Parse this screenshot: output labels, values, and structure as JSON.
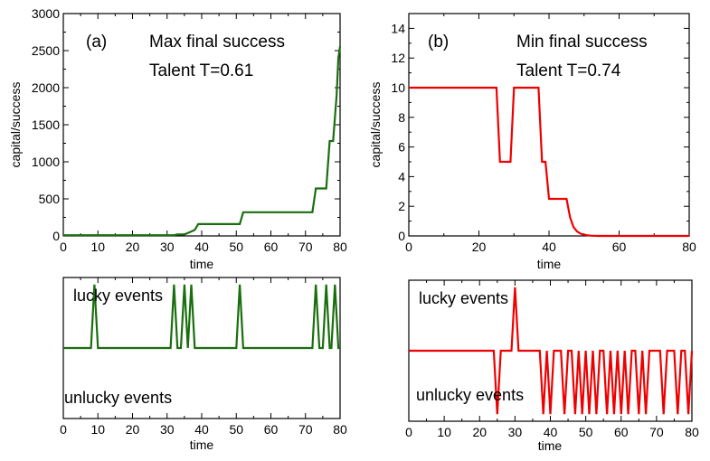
{
  "chart_data": [
    {
      "id": "a-capital",
      "type": "line",
      "panel_label": "(a)",
      "title": "Max final success",
      "subtitle": "Talent T=0.61",
      "xlabel": "time",
      "ylabel": "capital/success",
      "xlim": [
        0,
        80
      ],
      "ylim": [
        0,
        3000
      ],
      "xticks": [
        0,
        10,
        20,
        30,
        40,
        50,
        60,
        70,
        80
      ],
      "yticks": [
        0,
        500,
        1000,
        1500,
        2000,
        2500,
        3000
      ],
      "color": "#1a6e0e",
      "series": [
        {
          "name": "capital",
          "x": [
            0,
            32,
            33,
            35,
            36,
            37,
            38,
            39,
            51,
            52,
            72,
            73,
            76,
            77,
            78,
            79,
            79.5,
            80
          ],
          "y": [
            10,
            10,
            20,
            20,
            40,
            60,
            80,
            160,
            160,
            320,
            320,
            640,
            640,
            1280,
            1280,
            1900,
            2400,
            2560
          ]
        }
      ]
    },
    {
      "id": "b-capital",
      "type": "line",
      "panel_label": "(b)",
      "title": "Min final success",
      "subtitle": "Talent T=0.74",
      "xlabel": "time",
      "ylabel": "capital/success",
      "xlim": [
        0,
        80
      ],
      "ylim": [
        0,
        15
      ],
      "xticks": [
        0,
        20,
        40,
        60,
        80
      ],
      "yticks": [
        0,
        2,
        4,
        6,
        8,
        10,
        12,
        14
      ],
      "color": "#ee0000",
      "series": [
        {
          "name": "capital",
          "x": [
            0,
            25,
            26,
            29,
            30,
            37,
            38,
            39,
            40,
            45,
            46,
            47,
            48,
            49,
            50,
            51,
            52,
            53,
            54,
            80
          ],
          "y": [
            10,
            10,
            5,
            5,
            10,
            10,
            5,
            5,
            2.5,
            2.5,
            1.25,
            0.6,
            0.3,
            0.15,
            0.08,
            0.04,
            0.02,
            0.01,
            0,
            0
          ]
        }
      ]
    },
    {
      "id": "a-events",
      "type": "line",
      "xlabel": "time",
      "xlim": [
        0,
        80
      ],
      "ylim": [
        -1,
        1
      ],
      "xticks": [
        0,
        10,
        20,
        30,
        40,
        50,
        60,
        70,
        80
      ],
      "lucky_label": "lucky events",
      "unlucky_label": "unlucky events",
      "color": "#1a6e0e",
      "lucky_times": [
        9,
        32,
        35,
        37,
        51,
        73,
        76,
        78.5
      ],
      "unlucky_times": []
    },
    {
      "id": "b-events",
      "type": "line",
      "xlabel": "time",
      "xlim": [
        0,
        80
      ],
      "ylim": [
        -1,
        1
      ],
      "xticks": [
        0,
        10,
        20,
        30,
        40,
        50,
        60,
        70,
        80
      ],
      "lucky_label": "lucky events",
      "unlucky_label": "unlucky events",
      "color": "#ee0000",
      "lucky_times": [
        30
      ],
      "unlucky_times": [
        25,
        38,
        40,
        44,
        47,
        49,
        51,
        53,
        56,
        58,
        60,
        62,
        65,
        67,
        72,
        76,
        79
      ]
    }
  ]
}
